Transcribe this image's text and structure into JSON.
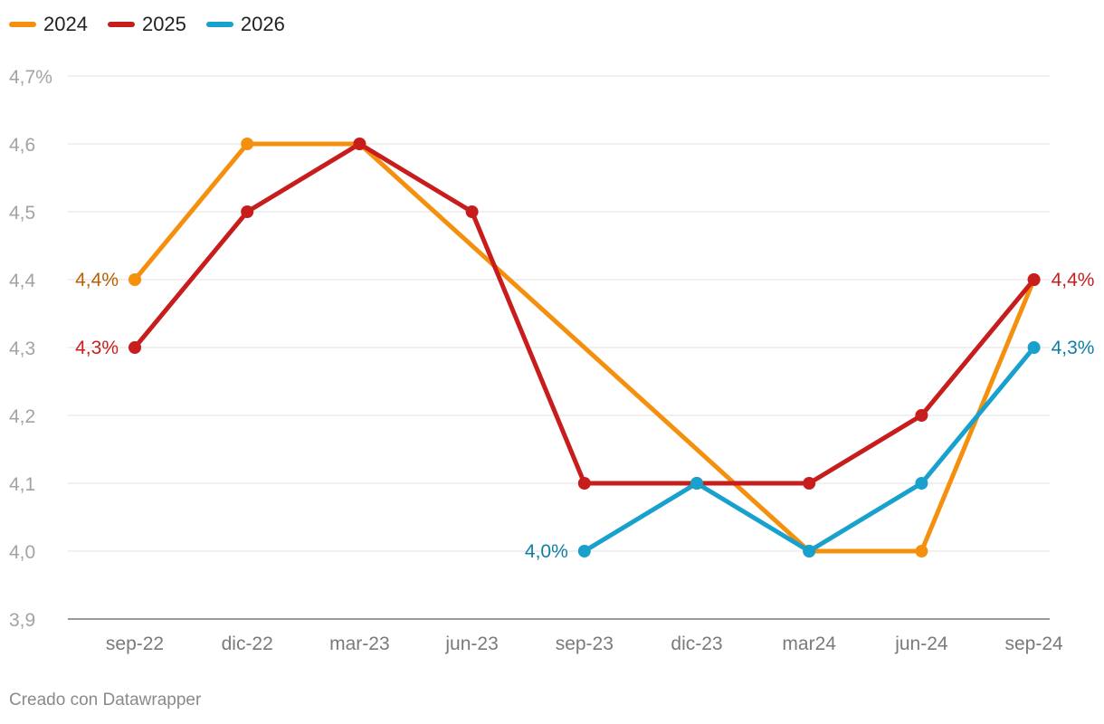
{
  "legend": [
    {
      "name": "2024",
      "color": "#f5900f"
    },
    {
      "name": "2025",
      "color": "#c71e1d"
    },
    {
      "name": "2026",
      "color": "#18a1cd"
    }
  ],
  "credit": "Creado con Datawrapper",
  "chart_data": {
    "type": "line",
    "title": "",
    "xlabel": "",
    "ylabel": "",
    "categories": [
      "sep-22",
      "dic-22",
      "mar-23",
      "jun-23",
      "sep-23",
      "dic-23",
      "mar24",
      "jun-24",
      "sep-24"
    ],
    "ylim": [
      3.9,
      4.7
    ],
    "yticks": [
      3.9,
      4.0,
      4.1,
      4.2,
      4.3,
      4.4,
      4.5,
      4.6,
      4.7
    ],
    "ytick_labels": [
      "3,9",
      "4,0",
      "4,1",
      "4,2",
      "4,3",
      "4,4",
      "4,5",
      "4,6",
      "4,7%"
    ],
    "grid": true,
    "legend_position": "top-left",
    "series": [
      {
        "name": "2024",
        "color": "#f5900f",
        "label_color": "#b85f00",
        "values": [
          4.4,
          4.6,
          4.6,
          null,
          null,
          null,
          4.0,
          4.0,
          4.4
        ],
        "point_labels": [
          {
            "index": 0,
            "text": "4,4%",
            "side": "left"
          }
        ]
      },
      {
        "name": "2025",
        "color": "#c71e1d",
        "label_color": "#c71e1d",
        "values": [
          4.3,
          4.5,
          4.6,
          4.5,
          4.1,
          4.1,
          4.1,
          4.2,
          4.4
        ],
        "point_labels": [
          {
            "index": 0,
            "text": "4,3%",
            "side": "left"
          },
          {
            "index": 8,
            "text": "4,4%",
            "side": "right"
          }
        ]
      },
      {
        "name": "2026",
        "color": "#18a1cd",
        "label_color": "#0e7fa3",
        "values": [
          null,
          null,
          null,
          null,
          4.0,
          4.1,
          4.0,
          4.1,
          4.3
        ],
        "point_labels": [
          {
            "index": 4,
            "text": "4,0%",
            "side": "left"
          },
          {
            "index": 8,
            "text": "4,3%",
            "side": "right"
          }
        ]
      }
    ]
  }
}
